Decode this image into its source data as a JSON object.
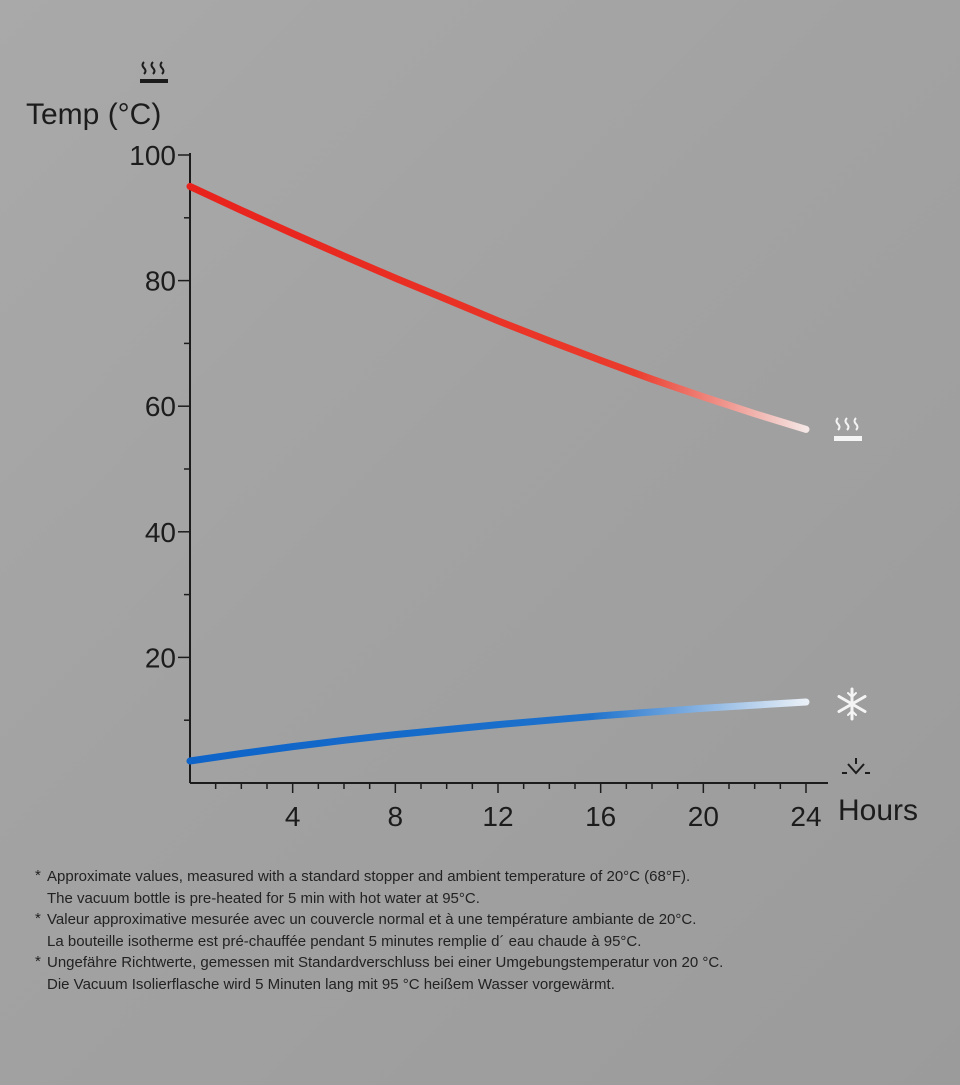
{
  "chart_data": {
    "type": "line",
    "ylabel": "Temp (°C)",
    "xlabel": "Hours",
    "xlim": [
      0,
      24
    ],
    "ylim": [
      0,
      100
    ],
    "x_ticks": [
      4,
      8,
      12,
      16,
      20,
      24
    ],
    "y_ticks": [
      20,
      40,
      60,
      80,
      100
    ],
    "grid": false,
    "series": [
      {
        "icon": "hot-steam-icon",
        "color": "#e8221c",
        "x": [
          0,
          2,
          4,
          6,
          8,
          10,
          12,
          14,
          16,
          18,
          20,
          22,
          24
        ],
        "values": [
          95,
          91.2,
          87.5,
          83.9,
          80.4,
          77,
          73.6,
          70.4,
          67.3,
          64.3,
          61.5,
          58.8,
          56.3
        ]
      },
      {
        "icon": "snowflake-icon",
        "color": "#0d63c8",
        "x": [
          0,
          2,
          4,
          6,
          8,
          10,
          12,
          14,
          16,
          18,
          20,
          22,
          24
        ],
        "values": [
          3.5,
          4.7,
          5.8,
          6.8,
          7.7,
          8.5,
          9.3,
          10,
          10.7,
          11.3,
          11.9,
          12.4,
          12.9
        ]
      }
    ],
    "icons": {
      "axis_top": "hot-steam-icon",
      "axis_corner": "ambient-temperature-icon"
    }
  },
  "footnotes": [
    {
      "mark": "*",
      "lines": [
        "Approximate values, measured with a standard stopper and ambient temperature of 20°C (68°F).",
        "The vacuum bottle is pre-heated for 5 min with hot water at 95°C."
      ]
    },
    {
      "mark": "*",
      "lines": [
        "Valeur approximative mesurée avec un couvercle normal et à une température ambiante de 20°C.",
        "La bouteille isotherme est pré-chauffée pendant 5 minutes remplie d´ eau chaude à 95°C."
      ]
    },
    {
      "mark": "*",
      "lines": [
        "Ungefähre Richtwerte, gemessen mit Standardverschluss bei einer Umgebungstemperatur von 20 °C.",
        "Die Vacuum Isolierflasche wird 5 Minuten lang mit 95 °C heißem Wasser vorgewärmt."
      ]
    }
  ]
}
